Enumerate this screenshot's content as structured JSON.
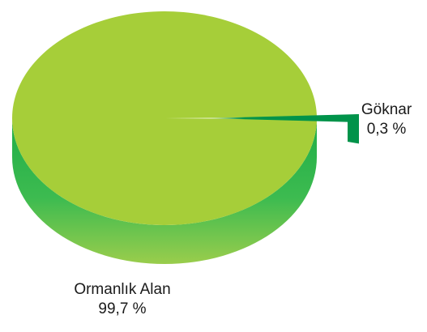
{
  "chart_data": {
    "type": "pie",
    "style": "3d",
    "slices": [
      {
        "label": "Ormanlık Alan",
        "value": 99.7,
        "value_label": "99,7 %",
        "color": "#a6ce39",
        "side_color": "#2bb24c"
      },
      {
        "label": "Göknar",
        "value": 0.3,
        "value_label": "0,3 %",
        "color": "#00934a",
        "side_color": "#00934a"
      }
    ],
    "exploded": "Göknar",
    "legend": "none"
  }
}
